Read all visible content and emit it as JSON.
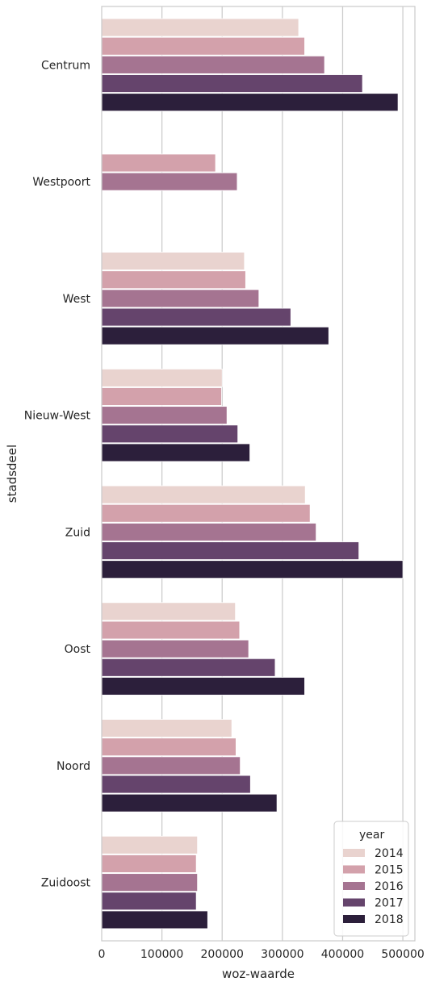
{
  "chart_data": {
    "type": "bar",
    "orientation": "horizontal",
    "xlabel": "woz-waarde",
    "ylabel": "stadsdeel",
    "xlim": [
      0,
      520000
    ],
    "xticks": [
      0,
      100000,
      200000,
      300000,
      400000,
      500000
    ],
    "grid": "vertical",
    "legend_position": "bottom-right",
    "legend_title": "year",
    "categories": [
      "Centrum",
      "Westpoort",
      "West",
      "Nieuw-West",
      "Zuid",
      "Oost",
      "Noord",
      "Zuidoost"
    ],
    "series": [
      {
        "name": "2014",
        "color": "#e9d3cf",
        "values": [
          327000,
          null,
          237000,
          200000,
          338000,
          222000,
          216000,
          159000
        ]
      },
      {
        "name": "2015",
        "color": "#d3a1ab",
        "values": [
          337000,
          189000,
          239000,
          199000,
          346000,
          229000,
          223000,
          157000
        ]
      },
      {
        "name": "2016",
        "color": "#a57491",
        "values": [
          370000,
          225000,
          261000,
          208000,
          356000,
          244000,
          230000,
          159000
        ]
      },
      {
        "name": "2017",
        "color": "#65446c",
        "values": [
          433000,
          null,
          314000,
          226000,
          427000,
          288000,
          247000,
          157000
        ]
      },
      {
        "name": "2018",
        "color": "#2c1f3b",
        "values": [
          492000,
          null,
          377000,
          246000,
          500000,
          337000,
          291000,
          176000
        ]
      }
    ]
  }
}
